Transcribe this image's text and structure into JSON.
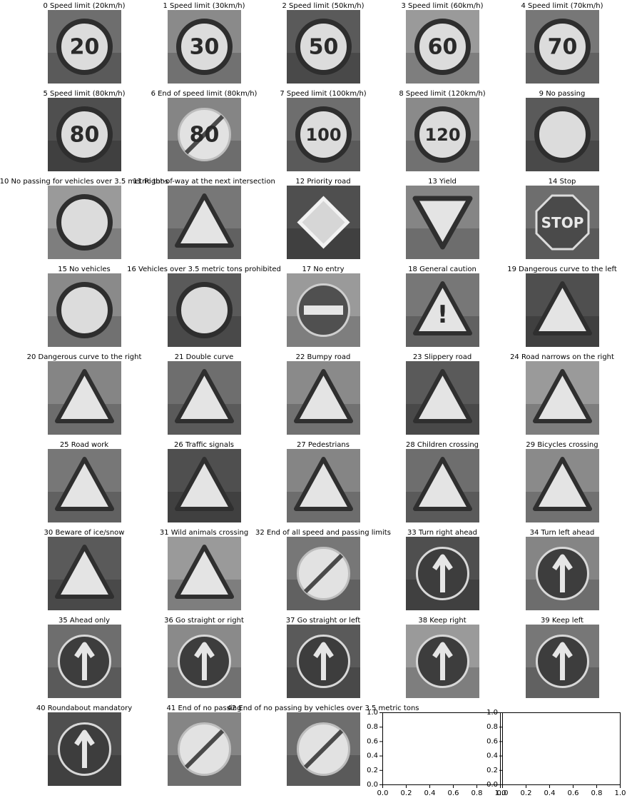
{
  "figure": {
    "signs": [
      {
        "caption": "0 Speed limit (20km/h)",
        "glyph": "20",
        "shape": "circle-red-ring"
      },
      {
        "caption": "1 Speed limit (30km/h)",
        "glyph": "30",
        "shape": "circle-red-ring"
      },
      {
        "caption": "2 Speed limit (50km/h)",
        "glyph": "50",
        "shape": "circle-red-ring"
      },
      {
        "caption": "3 Speed limit (60km/h)",
        "glyph": "60",
        "shape": "circle-red-ring"
      },
      {
        "caption": "4 Speed limit (70km/h)",
        "glyph": "70",
        "shape": "circle-red-ring"
      },
      {
        "caption": "5 Speed limit (80km/h)",
        "glyph": "80",
        "shape": "circle-red-ring"
      },
      {
        "caption": "6 End of speed limit (80km/h)",
        "glyph": "80",
        "shape": "circle-end"
      },
      {
        "caption": "7 Speed limit (100km/h)",
        "glyph": "100",
        "shape": "circle-red-ring"
      },
      {
        "caption": "8 Speed limit (120km/h)",
        "glyph": "120",
        "shape": "circle-red-ring"
      },
      {
        "caption": "9 No passing",
        "glyph": "",
        "shape": "circle-red-ring"
      },
      {
        "caption": "10 No passing for vehicles over 3.5 metric tons",
        "glyph": "",
        "shape": "circle-red-ring"
      },
      {
        "caption": "11 Right-of-way at the next intersection",
        "glyph": "",
        "shape": "triangle-up"
      },
      {
        "caption": "12 Priority road",
        "glyph": "",
        "shape": "diamond"
      },
      {
        "caption": "13 Yield",
        "glyph": "",
        "shape": "triangle-down"
      },
      {
        "caption": "14 Stop",
        "glyph": "STOP",
        "shape": "octagon"
      },
      {
        "caption": "15 No vehicles",
        "glyph": "",
        "shape": "circle-red-ring"
      },
      {
        "caption": "16 Vehicles over 3.5 metric tons prohibited",
        "glyph": "",
        "shape": "circle-red-ring"
      },
      {
        "caption": "17 No entry",
        "glyph": "",
        "shape": "circle-no-entry"
      },
      {
        "caption": "18 General caution",
        "glyph": "!",
        "shape": "triangle-up"
      },
      {
        "caption": "19 Dangerous curve to the left",
        "glyph": "",
        "shape": "triangle-up"
      },
      {
        "caption": "20 Dangerous curve to the right",
        "glyph": "",
        "shape": "triangle-up"
      },
      {
        "caption": "21 Double curve",
        "glyph": "",
        "shape": "triangle-up"
      },
      {
        "caption": "22 Bumpy road",
        "glyph": "",
        "shape": "triangle-up"
      },
      {
        "caption": "23 Slippery road",
        "glyph": "",
        "shape": "triangle-up"
      },
      {
        "caption": "24 Road narrows on the right",
        "glyph": "",
        "shape": "triangle-up"
      },
      {
        "caption": "25 Road work",
        "glyph": "",
        "shape": "triangle-up"
      },
      {
        "caption": "26 Traffic signals",
        "glyph": "",
        "shape": "triangle-up"
      },
      {
        "caption": "27 Pedestrians",
        "glyph": "",
        "shape": "triangle-up"
      },
      {
        "caption": "28 Children crossing",
        "glyph": "",
        "shape": "triangle-up"
      },
      {
        "caption": "29 Bicycles crossing",
        "glyph": "",
        "shape": "triangle-up"
      },
      {
        "caption": "30 Beware of ice/snow",
        "glyph": "",
        "shape": "triangle-up"
      },
      {
        "caption": "31 Wild animals crossing",
        "glyph": "",
        "shape": "triangle-up"
      },
      {
        "caption": "32 End of all speed and passing limits",
        "glyph": "",
        "shape": "circle-end"
      },
      {
        "caption": "33 Turn right ahead",
        "glyph": "",
        "shape": "circle-blue"
      },
      {
        "caption": "34 Turn left ahead",
        "glyph": "",
        "shape": "circle-blue"
      },
      {
        "caption": "35 Ahead only",
        "glyph": "",
        "shape": "circle-blue"
      },
      {
        "caption": "36 Go straight or right",
        "glyph": "",
        "shape": "circle-blue"
      },
      {
        "caption": "37 Go straight or left",
        "glyph": "",
        "shape": "circle-blue"
      },
      {
        "caption": "38 Keep right",
        "glyph": "",
        "shape": "circle-blue"
      },
      {
        "caption": "39 Keep left",
        "glyph": "",
        "shape": "circle-blue"
      },
      {
        "caption": "40 Roundabout mandatory",
        "glyph": "",
        "shape": "circle-blue"
      },
      {
        "caption": "41 End of no passing",
        "glyph": "",
        "shape": "circle-end"
      },
      {
        "caption": "42 End of no passing by vehicles over 3.5 metric tons",
        "glyph": "",
        "shape": "circle-end"
      }
    ],
    "empty_axes": [
      {
        "xlim": [
          0,
          1
        ],
        "ylim": [
          0,
          1
        ],
        "xticks": [
          "0.0",
          "0.2",
          "0.4",
          "0.6",
          "0.8",
          "1.0"
        ],
        "yticks": [
          "0.0",
          "0.2",
          "0.4",
          "0.6",
          "0.8",
          "1.0"
        ]
      },
      {
        "xlim": [
          0,
          1
        ],
        "ylim": [
          0,
          1
        ],
        "xticks": [
          "0.0",
          "0.2",
          "0.4",
          "0.6",
          "0.8",
          "1.0"
        ],
        "yticks": [
          "0.0",
          "0.2",
          "0.4",
          "0.6",
          "0.8",
          "1.0"
        ]
      }
    ]
  }
}
